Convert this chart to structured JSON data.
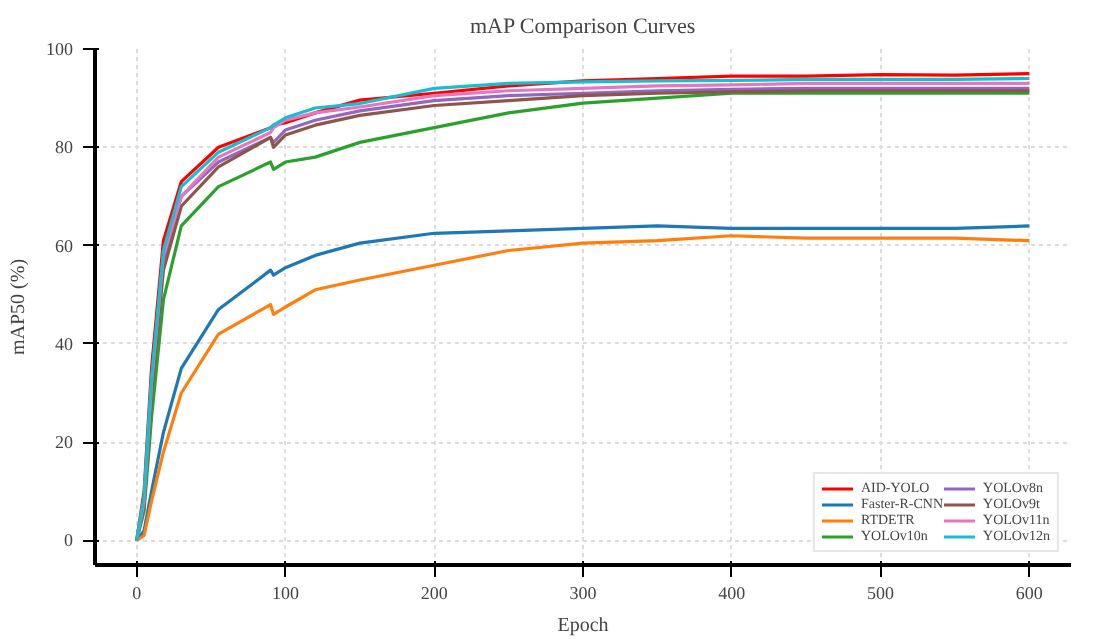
{
  "chart_data": {
    "type": "line",
    "title": "mAP Comparison Curves",
    "xlabel": "Epoch",
    "ylabel": "mAP50 (%)",
    "x": [
      0,
      5,
      10,
      18,
      30,
      55,
      90,
      92,
      100,
      120,
      150,
      200,
      250,
      300,
      350,
      400,
      450,
      500,
      550,
      600
    ],
    "xlim": [
      -28,
      628
    ],
    "ylim": [
      -5,
      100
    ],
    "xticks": [
      0,
      100,
      200,
      300,
      400,
      500,
      600
    ],
    "yticks": [
      0,
      20,
      40,
      60,
      80,
      100
    ],
    "grid": true,
    "legend": "bottom right",
    "line_style": "solid",
    "series": [
      {
        "name": "AID-YOLO",
        "color": "#ff0000",
        "values": [
          0,
          10,
          35,
          61,
          73,
          80,
          84,
          84.5,
          85,
          87,
          89.6,
          91,
          92.5,
          93.5,
          94,
          94.5,
          94.5,
          94.8,
          94.7,
          95
        ]
      },
      {
        "name": "Faster-R-CNN",
        "color": "#1f77b4",
        "values": [
          0,
          2,
          10,
          22,
          35,
          47,
          55,
          54,
          55.5,
          58,
          60.5,
          62.5,
          63,
          63.5,
          64,
          63.5,
          63.5,
          63.5,
          63.5,
          64
        ]
      },
      {
        "name": "RTDETR",
        "color": "#ff7f0e",
        "values": [
          0,
          1,
          8,
          18,
          30,
          42,
          48,
          46,
          47.5,
          51,
          53,
          56,
          59,
          60.5,
          61,
          62,
          61.5,
          61.5,
          61.5,
          61
        ]
      },
      {
        "name": "YOLOv10n",
        "color": "#2ca02c",
        "values": [
          0,
          6,
          25,
          49,
          64,
          72,
          77,
          75.5,
          77,
          78,
          81,
          84,
          87,
          89,
          90,
          91,
          91,
          91,
          91,
          91
        ]
      },
      {
        "name": "YOLOv8n",
        "color": "#9467bd",
        "values": [
          0,
          8,
          31,
          57,
          70,
          77,
          82,
          81,
          83.5,
          85.5,
          87.4,
          89.5,
          90.5,
          91,
          91.5,
          91.8,
          92,
          92,
          92,
          92
        ]
      },
      {
        "name": "YOLOv9t",
        "color": "#8c564b",
        "values": [
          0,
          7,
          30,
          55,
          68,
          76,
          82,
          80,
          82.5,
          84.5,
          86.5,
          88.5,
          89.5,
          90.5,
          91,
          91.3,
          91.5,
          91.5,
          91.5,
          91.5
        ]
      },
      {
        "name": "YOLOv11n",
        "color": "#e377c2",
        "values": [
          0,
          8,
          32,
          58,
          70,
          78,
          83,
          84,
          85.5,
          87,
          88.2,
          90.5,
          91.5,
          92,
          92.5,
          92.7,
          93,
          93,
          93,
          93
        ]
      },
      {
        "name": "YOLOv12n",
        "color": "#17becf",
        "values": [
          0,
          9,
          33,
          59,
          72,
          79,
          84,
          84.5,
          86,
          88,
          88.9,
          92,
          93,
          93.3,
          93.5,
          93.6,
          93.8,
          93.8,
          93.8,
          94
        ]
      }
    ]
  }
}
